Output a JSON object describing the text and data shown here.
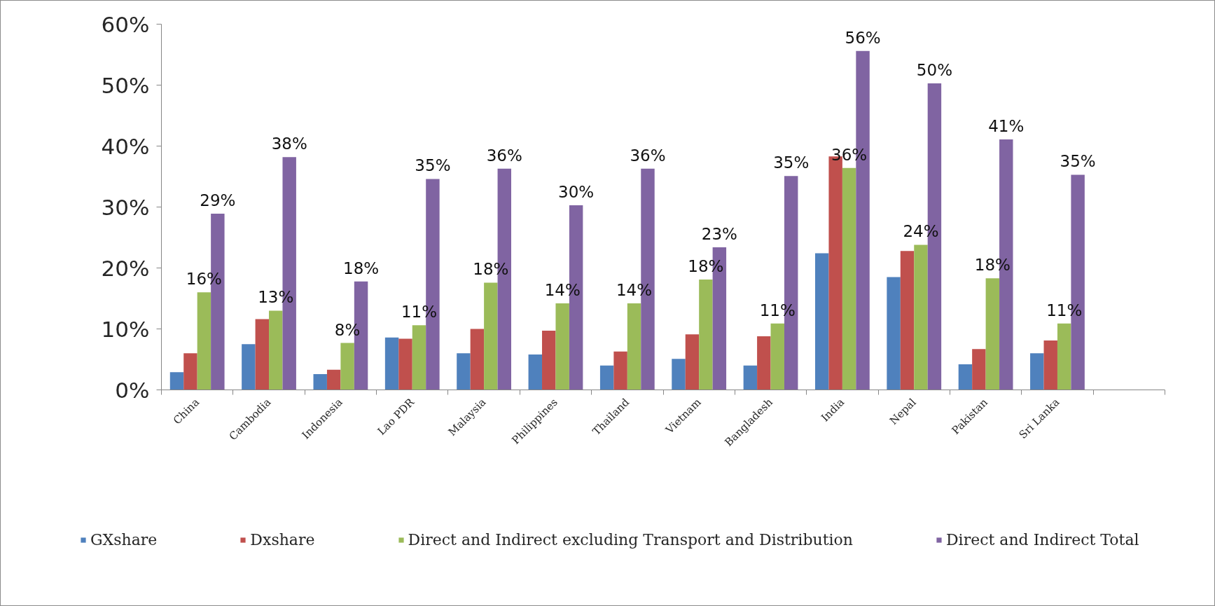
{
  "chart_data": {
    "type": "bar",
    "categories": [
      "China",
      "Cambodia",
      "Indonesia",
      "Lao PDR",
      "Malaysia",
      "Philippines",
      "Thailand",
      "Vietnam",
      "Bangladesh",
      "India",
      "Nepal",
      "Pakistan",
      "Sri Lanka",
      null
    ],
    "series": [
      {
        "name": "GXshare",
        "color": "#4f81bd",
        "values": [
          2.9,
          7.5,
          2.6,
          8.6,
          6.0,
          5.8,
          4.0,
          5.1,
          4.0,
          22.4,
          18.5,
          4.2,
          6.0,
          null
        ]
      },
      {
        "name": "Dxshare",
        "color": "#c0504d",
        "values": [
          6.0,
          11.6,
          3.3,
          8.4,
          10.0,
          9.7,
          6.3,
          9.1,
          8.8,
          38.3,
          22.8,
          6.7,
          8.1,
          null
        ]
      },
      {
        "name": "Direct and Indirect excluding Transport and Distribution",
        "color": "#9bbb59",
        "values": [
          16.0,
          13.0,
          7.7,
          10.6,
          17.6,
          14.2,
          14.2,
          18.1,
          10.9,
          36.4,
          23.8,
          18.3,
          10.9,
          null
        ],
        "value_labels": [
          "16%",
          "13%",
          "8%",
          "11%",
          "18%",
          "14%",
          "14%",
          "18%",
          "11%",
          "36%",
          "24%",
          "18%",
          "11%",
          null
        ]
      },
      {
        "name": "Direct and Indirect Total",
        "color": "#8064a2",
        "values": [
          28.9,
          38.2,
          17.8,
          34.6,
          36.3,
          30.3,
          36.3,
          23.4,
          35.1,
          55.6,
          50.3,
          41.1,
          35.3,
          null
        ],
        "value_labels": [
          "29%",
          "38%",
          "18%",
          "35%",
          "36%",
          "30%",
          "36%",
          "23%",
          "35%",
          "56%",
          "50%",
          "41%",
          "35%",
          null
        ]
      }
    ],
    "ylim": [
      0,
      60
    ],
    "yticks": [
      {
        "value": 0,
        "label": "0%"
      },
      {
        "value": 10,
        "label": "10%"
      },
      {
        "value": 20,
        "label": "20%"
      },
      {
        "value": 30,
        "label": "30%"
      },
      {
        "value": 40,
        "label": "40%"
      },
      {
        "value": 50,
        "label": "50%"
      },
      {
        "value": 60,
        "label": "60%"
      }
    ],
    "grid": false,
    "legend": "bottom"
  }
}
